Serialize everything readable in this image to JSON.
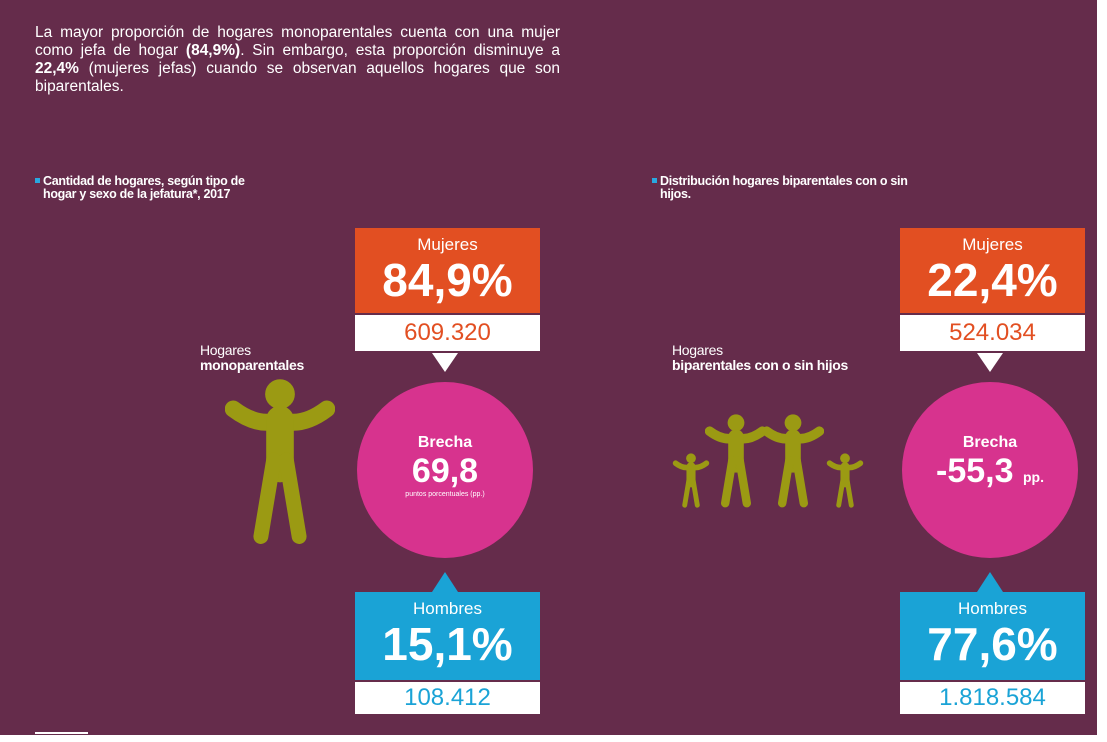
{
  "intro": {
    "p1": "La mayor proporción de hogares monoparentales cuenta con una mujer como jefa de hogar ",
    "b1": "(84,9%)",
    "p2": ". Sin embargo, esta proporción disminuye a ",
    "b2": "22,4%",
    "p3": " (mujeres jefas) cuando se observan aquellos hogares que son biparentales."
  },
  "left": {
    "caption": "Cantidad de hogares, según tipo de hogar y sexo de la jefatura*, 2017",
    "household": {
      "line1": "Hogares",
      "line2": "monoparentales"
    },
    "women": {
      "label": "Mujeres",
      "percent": "84,9%",
      "count": "609.320"
    },
    "gap": {
      "label": "Brecha",
      "value": "69,8",
      "unit": "puntos porcentuales (pp.)"
    },
    "men": {
      "label": "Hombres",
      "percent": "15,1%",
      "count": "108.412"
    }
  },
  "right": {
    "caption": "Distribución hogares biparentales con o sin hijos.",
    "household": {
      "line1": "Hogares",
      "line2": "biparentales con o sin hijos"
    },
    "women": {
      "label": "Mujeres",
      "percent": "22,4%",
      "count": "524.034"
    },
    "gap": {
      "label": "Brecha",
      "value": "-55,3",
      "unit": "pp."
    },
    "men": {
      "label": "Hombres",
      "percent": "77,6%",
      "count": "1.818.584"
    }
  }
}
